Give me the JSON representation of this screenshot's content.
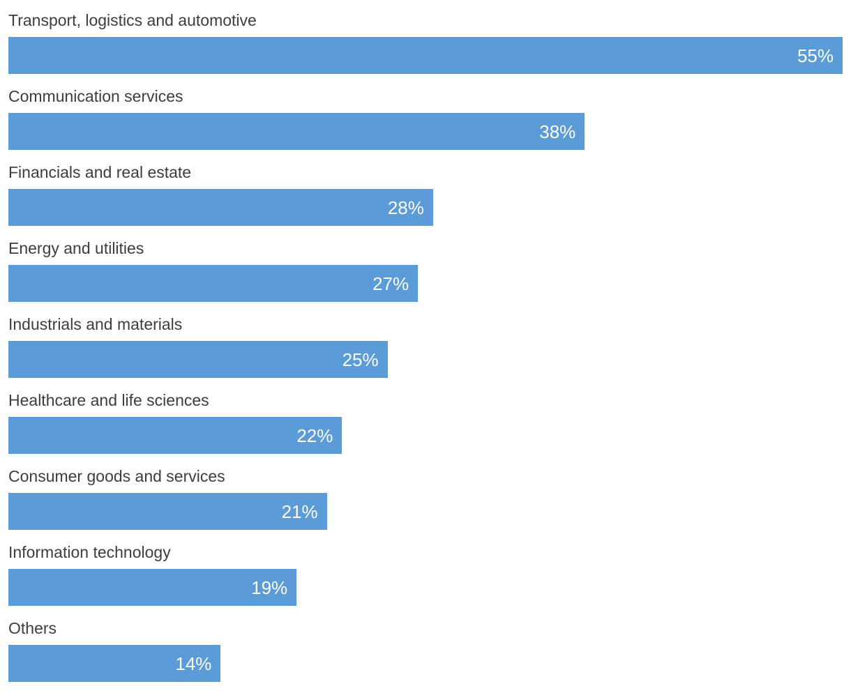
{
  "chart_data": {
    "type": "bar",
    "orientation": "horizontal",
    "title": "",
    "xlabel": "",
    "ylabel": "",
    "xlim": [
      0,
      55
    ],
    "grid": false,
    "legend": false,
    "value_label_position": "inside-end",
    "categories": [
      "Transport, logistics and automotive",
      "Communication services",
      "Financials and real estate",
      "Energy and utilities",
      "Industrials and materials",
      "Healthcare and life sciences",
      "Consumer goods and services",
      "Information technology",
      "Others"
    ],
    "values": [
      55,
      38,
      28,
      27,
      25,
      22,
      21,
      19,
      14
    ],
    "display_values": [
      "55%",
      "38%",
      "28%",
      "27%",
      "25%",
      "22%",
      "21%",
      "19%",
      "14%"
    ],
    "colors": {
      "bar_fill": "#5b9bd8",
      "category_label": "#3d3d3d",
      "value_label": "#ffffff",
      "background": "#ffffff"
    }
  }
}
